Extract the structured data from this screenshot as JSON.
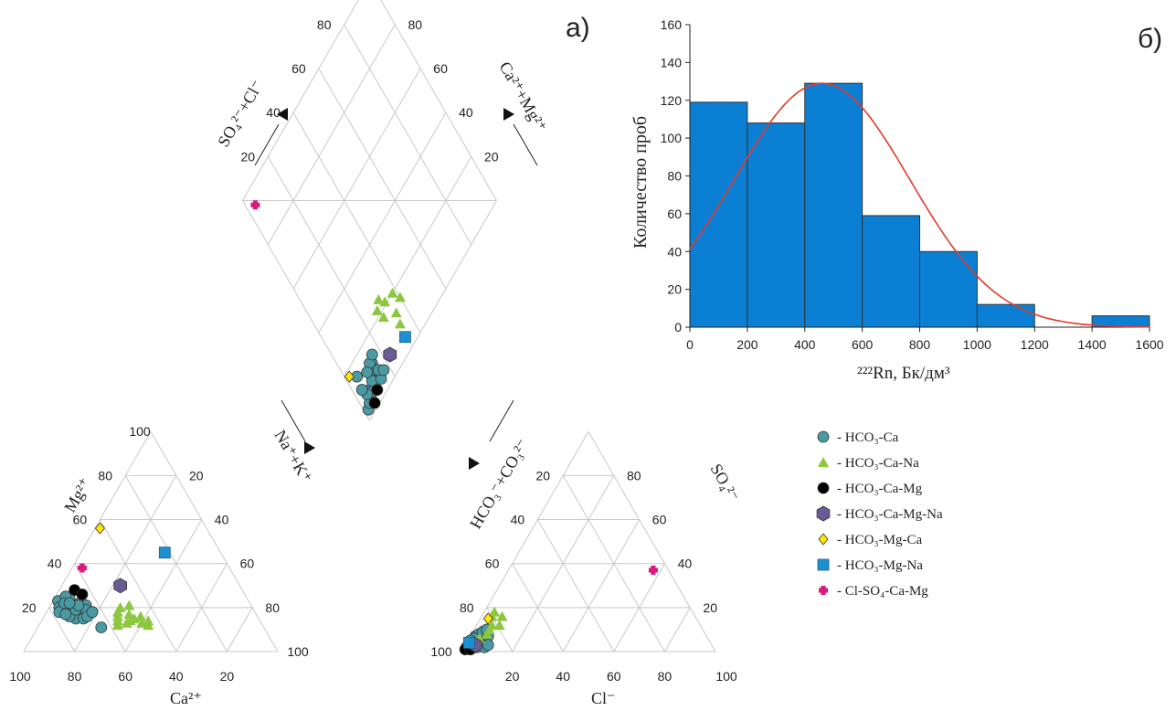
{
  "panel_labels": {
    "a": "а)",
    "b": "б)"
  },
  "colors": {
    "hco3_ca": "#4a9aa3",
    "hco3_ca_na": "#8dc63f",
    "hco3_ca_mg": "#000000",
    "hco3_ca_mg_na": "#6b5b95",
    "hco3_mg_ca": "#ffe600",
    "hco3_mg_na": "#1e8fd1",
    "cl_so4_ca_mg": "#d81b7a",
    "bar": "#0a7fd4",
    "curve": "#e23a2a"
  },
  "legend": [
    {
      "key": "hco3_ca",
      "shape": "circle",
      "label": "- HCO₃-Ca"
    },
    {
      "key": "hco3_ca_na",
      "shape": "triangle",
      "label": "- HCO₃-Ca-Na"
    },
    {
      "key": "hco3_ca_mg",
      "shape": "circle",
      "label": "- HCO₃-Ca-Mg"
    },
    {
      "key": "hco3_ca_mg_na",
      "shape": "hexagon",
      "label": "- HCO₃-Ca-Mg-Na"
    },
    {
      "key": "hco3_mg_ca",
      "shape": "diamond",
      "label": "- HCO₃-Mg-Ca"
    },
    {
      "key": "hco3_mg_na",
      "shape": "square",
      "label": "- HCO₃-Mg-Na"
    },
    {
      "key": "cl_so4_ca_mg",
      "shape": "cross",
      "label": "- Cl-SO₄-Ca-Mg"
    }
  ],
  "piper": {
    "tick_values": [
      "20",
      "40",
      "60",
      "80",
      "100"
    ],
    "diamond_ticks": [
      "20",
      "40",
      "60",
      "80"
    ],
    "cation_xlabel": "Ca²⁺",
    "anion_xlabel": "Cl⁻",
    "mg_label": "Mg²⁺",
    "nak_label": "Na⁺+K⁺",
    "hco3_label": "HCO₃⁻+CO₃²⁻",
    "so4_label": "SO₄²⁻",
    "so4cl_label": "SO₄²⁻+Cl⁻",
    "camg_label": "Ca²⁺+Mg²⁺"
  },
  "chart_data": [
    {
      "type": "scatter",
      "name": "piper-cation",
      "xlabel": "Ca²⁺",
      "axes": [
        "Ca",
        "Mg",
        "Na+K"
      ],
      "series": [
        {
          "name": "HCO₃-Ca",
          "points": [
            {
              "Ca": 75,
              "Mg": 23,
              "NaK": 2
            },
            {
              "Ca": 70,
              "Mg": 24,
              "NaK": 6
            },
            {
              "Ca": 72,
              "Mg": 21,
              "NaK": 7
            },
            {
              "Ca": 69,
              "Mg": 20,
              "NaK": 11
            },
            {
              "Ca": 74,
              "Mg": 19,
              "NaK": 7
            },
            {
              "Ca": 76,
              "Mg": 20,
              "NaK": 4
            },
            {
              "Ca": 71,
              "Mg": 18,
              "NaK": 11
            },
            {
              "Ca": 67,
              "Mg": 22,
              "NaK": 11
            },
            {
              "Ca": 73,
              "Mg": 17,
              "NaK": 10
            },
            {
              "Ca": 70,
              "Mg": 16,
              "NaK": 14
            },
            {
              "Ca": 68,
              "Mg": 18,
              "NaK": 14
            },
            {
              "Ca": 77,
              "Mg": 18,
              "NaK": 5
            },
            {
              "Ca": 65,
              "Mg": 21,
              "NaK": 14
            },
            {
              "Ca": 72,
              "Mg": 15,
              "NaK": 13
            },
            {
              "Ca": 69,
              "Mg": 15,
              "NaK": 16
            },
            {
              "Ca": 71,
              "Mg": 25,
              "NaK": 4
            },
            {
              "Ca": 66,
              "Mg": 19,
              "NaK": 15
            },
            {
              "Ca": 74,
              "Mg": 16,
              "NaK": 10
            },
            {
              "Ca": 67,
              "Mg": 16,
              "NaK": 17
            },
            {
              "Ca": 73,
              "Mg": 22,
              "NaK": 5
            },
            {
              "Ca": 70,
              "Mg": 19,
              "NaK": 11
            },
            {
              "Ca": 68,
              "Mg": 21,
              "NaK": 11
            },
            {
              "Ca": 75,
              "Mg": 17,
              "NaK": 8
            },
            {
              "Ca": 71,
              "Mg": 22,
              "NaK": 7
            },
            {
              "Ca": 64,
              "Mg": 18,
              "NaK": 18
            },
            {
              "Ca": 64,
              "Mg": 11,
              "NaK": 25
            }
          ]
        },
        {
          "name": "HCO₃-Ca-Na",
          "points": [
            {
              "Ca": 52,
              "Mg": 20,
              "NaK": 28
            },
            {
              "Ca": 48,
              "Mg": 21,
              "NaK": 31
            },
            {
              "Ca": 50,
              "Mg": 17,
              "NaK": 33
            },
            {
              "Ca": 46,
              "Mg": 16,
              "NaK": 38
            },
            {
              "Ca": 55,
              "Mg": 16,
              "NaK": 29
            },
            {
              "Ca": 51,
              "Mg": 14,
              "NaK": 35
            },
            {
              "Ca": 47,
              "Mg": 13,
              "NaK": 40
            },
            {
              "Ca": 53,
              "Mg": 13,
              "NaK": 34
            },
            {
              "Ca": 45,
              "Mg": 12,
              "NaK": 43
            },
            {
              "Ca": 56,
              "Mg": 14,
              "NaK": 30
            },
            {
              "Ca": 54,
              "Mg": 18,
              "NaK": 28
            },
            {
              "Ca": 49,
              "Mg": 15,
              "NaK": 36
            },
            {
              "Ca": 44,
              "Mg": 14,
              "NaK": 42
            },
            {
              "Ca": 57,
              "Mg": 12,
              "NaK": 31
            }
          ]
        },
        {
          "name": "HCO₃-Ca-Mg",
          "points": [
            {
              "Ca": 66,
              "Mg": 28,
              "NaK": 6
            },
            {
              "Ca": 64,
              "Mg": 26,
              "NaK": 10
            }
          ]
        },
        {
          "name": "HCO₃-Ca-Mg-Na",
          "points": [
            {
              "Ca": 47,
              "Mg": 30,
              "NaK": 23
            }
          ]
        },
        {
          "name": "HCO₃-Mg-Ca",
          "points": [
            {
              "Ca": 42,
              "Mg": 56,
              "NaK": 2
            }
          ]
        },
        {
          "name": "HCO₃-Mg-Na",
          "points": [
            {
              "Ca": 22,
              "Mg": 45,
              "NaK": 33
            }
          ]
        },
        {
          "name": "Cl-SO₄-Ca-Mg",
          "points": [
            {
              "Ca": 58,
              "Mg": 38,
              "NaK": 4
            }
          ]
        }
      ]
    },
    {
      "type": "scatter",
      "name": "piper-anion",
      "xlabel": "Cl⁻",
      "axes": [
        "HCO3",
        "SO4",
        "Cl"
      ],
      "series": [
        {
          "name": "HCO₃-Ca",
          "points": [
            {
              "HCO3": 97,
              "SO4": 2,
              "Cl": 1
            },
            {
              "HCO3": 95,
              "SO4": 4,
              "Cl": 1
            },
            {
              "HCO3": 93,
              "SO4": 5,
              "Cl": 2
            },
            {
              "HCO3": 91,
              "SO4": 7,
              "Cl": 2
            },
            {
              "HCO3": 94,
              "SO4": 4,
              "Cl": 2
            },
            {
              "HCO3": 96,
              "SO4": 1,
              "Cl": 3
            },
            {
              "HCO3": 90,
              "SO4": 5,
              "Cl": 5
            },
            {
              "HCO3": 89,
              "SO4": 8,
              "Cl": 3
            },
            {
              "HCO3": 92,
              "SO4": 3,
              "Cl": 5
            },
            {
              "HCO3": 88,
              "SO4": 6,
              "Cl": 6
            },
            {
              "HCO3": 95,
              "SO4": 2,
              "Cl": 3
            },
            {
              "HCO3": 93,
              "SO4": 2,
              "Cl": 5
            },
            {
              "HCO3": 91,
              "SO4": 3,
              "Cl": 6
            },
            {
              "HCO3": 87,
              "SO4": 9,
              "Cl": 4
            },
            {
              "HCO3": 86,
              "SO4": 7,
              "Cl": 7
            },
            {
              "HCO3": 90,
              "SO4": 2,
              "Cl": 8
            },
            {
              "HCO3": 92,
              "SO4": 6,
              "Cl": 2
            },
            {
              "HCO3": 88,
              "SO4": 3,
              "Cl": 9
            },
            {
              "HCO3": 94,
              "SO4": 5,
              "Cl": 1
            },
            {
              "HCO3": 85,
              "SO4": 10,
              "Cl": 5
            }
          ]
        },
        {
          "name": "HCO₃-Ca-Na",
          "points": [
            {
              "HCO3": 78,
              "SO4": 18,
              "Cl": 4
            },
            {
              "HCO3": 76,
              "SO4": 16,
              "Cl": 8
            },
            {
              "HCO3": 79,
              "SO4": 12,
              "Cl": 9
            },
            {
              "HCO3": 80,
              "SO4": 16,
              "Cl": 4
            },
            {
              "HCO3": 82,
              "SO4": 12,
              "Cl": 6
            },
            {
              "HCO3": 86,
              "SO4": 8,
              "Cl": 6
            },
            {
              "HCO3": 84,
              "SO4": 10,
              "Cl": 6
            },
            {
              "HCO3": 90,
              "SO4": 6,
              "Cl": 4
            }
          ]
        },
        {
          "name": "HCO₃-Ca-Mg",
          "points": [
            {
              "HCO3": 98,
              "SO4": 1,
              "Cl": 1
            },
            {
              "HCO3": 96,
              "SO4": 1,
              "Cl": 3
            }
          ]
        },
        {
          "name": "HCO₃-Ca-Mg-Na",
          "points": [
            {
              "HCO3": 93,
              "SO4": 3,
              "Cl": 4
            }
          ]
        },
        {
          "name": "HCO₃-Mg-Ca",
          "points": [
            {
              "HCO3": 82,
              "SO4": 15,
              "Cl": 3
            }
          ]
        },
        {
          "name": "HCO₃-Mg-Na",
          "points": [
            {
              "HCO3": 95,
              "SO4": 4,
              "Cl": 1
            }
          ]
        },
        {
          "name": "Cl-SO₄-Ca-Mg",
          "points": [
            {
              "HCO3": 6,
              "SO4": 37,
              "Cl": 57
            }
          ]
        }
      ]
    },
    {
      "type": "bar",
      "name": "histogram",
      "xlabel": "²²²Rn, Бк/дм³",
      "ylabel": "Количество проб",
      "xlim": [
        0,
        1600
      ],
      "ylim": [
        0,
        160
      ],
      "xticks": [
        0,
        200,
        400,
        600,
        800,
        1000,
        1200,
        1400,
        1600
      ],
      "yticks": [
        0,
        20,
        40,
        60,
        80,
        100,
        120,
        140,
        160
      ],
      "bins": [
        {
          "from": 0,
          "to": 200,
          "count": 119
        },
        {
          "from": 200,
          "to": 400,
          "count": 108
        },
        {
          "from": 400,
          "to": 600,
          "count": 129
        },
        {
          "from": 600,
          "to": 800,
          "count": 59
        },
        {
          "from": 800,
          "to": 1000,
          "count": 40
        },
        {
          "from": 1000,
          "to": 1200,
          "count": 12
        },
        {
          "from": 1200,
          "to": 1400,
          "count": 0
        },
        {
          "from": 1400,
          "to": 1600,
          "count": 6
        }
      ],
      "fit_curve": {
        "type": "normal",
        "mean": 460,
        "sd": 305,
        "peak": 129
      }
    }
  ]
}
